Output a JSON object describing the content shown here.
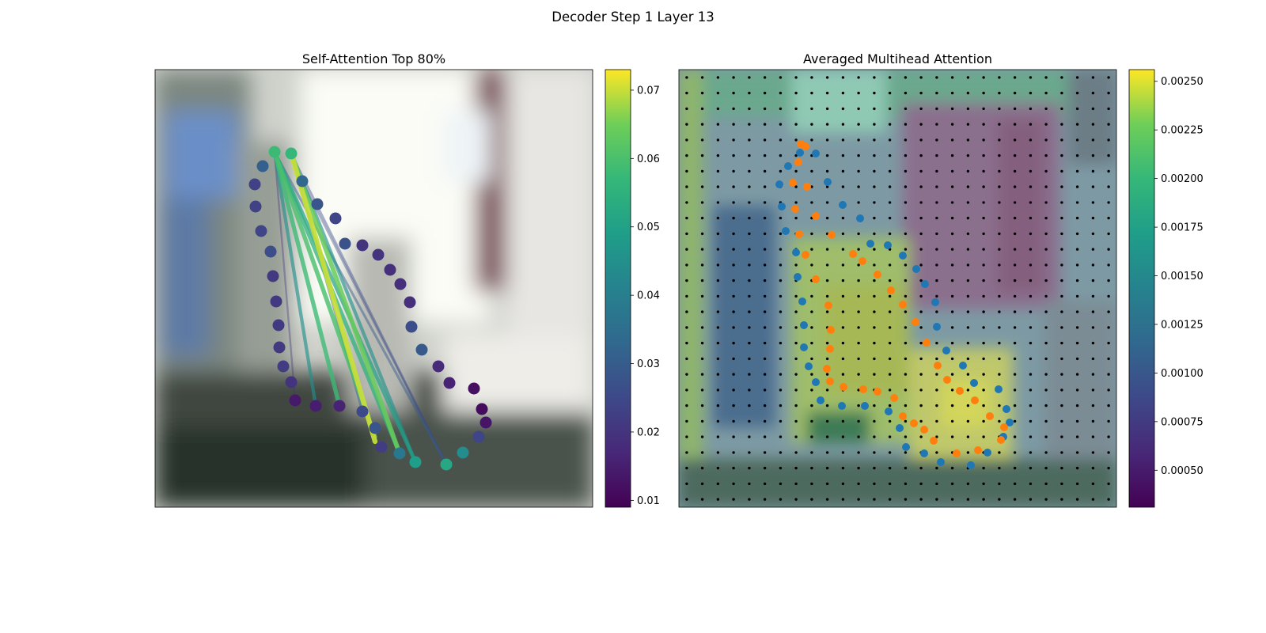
{
  "figure": {
    "title": "Decoder Step 1 Layer 13"
  },
  "chart_data": [
    {
      "type": "scatter",
      "panel": "self-attention",
      "title": "Self-Attention Top 80%",
      "background": "blurred photo",
      "colorbar": {
        "colormap": "viridis",
        "range": [
          0.009,
          0.073
        ],
        "ticks": [
          0.01,
          0.02,
          0.03,
          0.04,
          0.05,
          0.06,
          0.07
        ],
        "tick_labels": [
          "0.01",
          "0.02",
          "0.03",
          "0.04",
          "0.05",
          "0.06",
          "0.07"
        ]
      },
      "points": [
        [
          347,
          192,
          0.058
        ],
        [
          368,
          194,
          0.057
        ],
        [
          382,
          229,
          0.033
        ],
        [
          401,
          258,
          0.028
        ],
        [
          424,
          276,
          0.024
        ],
        [
          436,
          308,
          0.027
        ],
        [
          458,
          310,
          0.02
        ],
        [
          478,
          322,
          0.02
        ],
        [
          493,
          341,
          0.019
        ],
        [
          506,
          359,
          0.019
        ],
        [
          518,
          382,
          0.019
        ],
        [
          520,
          413,
          0.026
        ],
        [
          533,
          442,
          0.029
        ],
        [
          554,
          463,
          0.018
        ],
        [
          568,
          484,
          0.016
        ],
        [
          599,
          491,
          0.012
        ],
        [
          609,
          517,
          0.011
        ],
        [
          614,
          534,
          0.013
        ],
        [
          605,
          552,
          0.024
        ],
        [
          585,
          572,
          0.044
        ],
        [
          564,
          587,
          0.052
        ],
        [
          525,
          584,
          0.049
        ],
        [
          505,
          573,
          0.038
        ],
        [
          482,
          565,
          0.022
        ],
        [
          474,
          541,
          0.028
        ],
        [
          458,
          520,
          0.025
        ],
        [
          429,
          513,
          0.016
        ],
        [
          399,
          513,
          0.015
        ],
        [
          373,
          506,
          0.014
        ],
        [
          368,
          483,
          0.02
        ],
        [
          358,
          463,
          0.022
        ],
        [
          353,
          439,
          0.021
        ],
        [
          352,
          411,
          0.021
        ],
        [
          349,
          381,
          0.021
        ],
        [
          345,
          349,
          0.021
        ],
        [
          342,
          318,
          0.026
        ],
        [
          330,
          292,
          0.024
        ],
        [
          323,
          261,
          0.023
        ],
        [
          322,
          233,
          0.023
        ],
        [
          332,
          210,
          0.031
        ]
      ],
      "edges": [
        [
          368,
          194,
          474,
          558,
          0.07
        ],
        [
          368,
          194,
          505,
          573,
          0.064
        ],
        [
          347,
          192,
          474,
          552,
          0.06
        ],
        [
          347,
          192,
          429,
          513,
          0.058
        ],
        [
          347,
          192,
          399,
          513,
          0.045
        ],
        [
          347,
          192,
          505,
          573,
          0.055
        ],
        [
          347,
          192,
          525,
          584,
          0.05
        ],
        [
          368,
          194,
          525,
          584,
          0.045
        ],
        [
          347,
          192,
          564,
          587,
          0.03
        ],
        [
          368,
          194,
          564,
          587,
          0.026
        ],
        [
          347,
          192,
          373,
          506,
          0.02
        ],
        [
          368,
          194,
          458,
          520,
          0.03
        ],
        [
          382,
          229,
          564,
          587,
          0.025
        ]
      ]
    },
    {
      "type": "heatmap",
      "panel": "averaged-multihead",
      "title": "Averaged Multihead Attention",
      "grid": [
        28,
        28
      ],
      "background": "blurred photo with attention overlay",
      "colorbar": {
        "colormap": "viridis",
        "range": [
          0.00031,
          0.00256
        ],
        "ticks": [
          0.0005,
          0.00075,
          0.001,
          0.00125,
          0.0015,
          0.00175,
          0.002,
          0.00225,
          0.0025
        ],
        "tick_labels": [
          "0.00050",
          "0.00075",
          "0.00100",
          "0.00125",
          "0.00150",
          "0.00175",
          "0.00200",
          "0.00225",
          "0.00250"
        ]
      },
      "series": [
        {
          "color": "#1f77b4",
          "points": [
            [
              1011,
              193
            ],
            [
              1031,
              194
            ],
            [
              996,
              210
            ],
            [
              985,
              233
            ],
            [
              1046,
              230
            ],
            [
              988,
              261
            ],
            [
              1065,
              259
            ],
            [
              1087,
              276
            ],
            [
              993,
              292
            ],
            [
              1006,
              319
            ],
            [
              1100,
              308
            ],
            [
              1122,
              310
            ],
            [
              1141,
              323
            ],
            [
              1008,
              350
            ],
            [
              1158,
              340
            ],
            [
              1169,
              359
            ],
            [
              1014,
              381
            ],
            [
              1182,
              382
            ],
            [
              1016,
              411
            ],
            [
              1184,
              413
            ],
            [
              1016,
              439
            ],
            [
              1196,
              443
            ],
            [
              1022,
              463
            ],
            [
              1217,
              462
            ],
            [
              1031,
              483
            ],
            [
              1231,
              484
            ],
            [
              1037,
              506
            ],
            [
              1262,
              492
            ],
            [
              1064,
              513
            ],
            [
              1093,
              513
            ],
            [
              1123,
              520
            ],
            [
              1272,
              517
            ],
            [
              1137,
              541
            ],
            [
              1145,
              565
            ],
            [
              1168,
              573
            ],
            [
              1189,
              584
            ],
            [
              1227,
              588
            ],
            [
              1248,
              572
            ],
            [
              1268,
              552
            ],
            [
              1276,
              534
            ]
          ]
        },
        {
          "color": "#ff7f0e",
          "points": [
            [
              1012,
              182
            ],
            [
              1018,
              185
            ],
            [
              1009,
              205
            ],
            [
              1002,
              231
            ],
            [
              1020,
              236
            ],
            [
              1005,
              264
            ],
            [
              1031,
              273
            ],
            [
              1010,
              296
            ],
            [
              1051,
              297
            ],
            [
              1018,
              322
            ],
            [
              1078,
              321
            ],
            [
              1090,
              330
            ],
            [
              1031,
              353
            ],
            [
              1109,
              347
            ],
            [
              1126,
              367
            ],
            [
              1047,
              386
            ],
            [
              1141,
              385
            ],
            [
              1050,
              417
            ],
            [
              1157,
              407
            ],
            [
              1049,
              441
            ],
            [
              1171,
              433
            ],
            [
              1045,
              466
            ],
            [
              1185,
              462
            ],
            [
              1049,
              482
            ],
            [
              1066,
              489
            ],
            [
              1091,
              492
            ],
            [
              1109,
              495
            ],
            [
              1130,
              503
            ],
            [
              1197,
              480
            ],
            [
              1213,
              494
            ],
            [
              1232,
              506
            ],
            [
              1251,
              526
            ],
            [
              1269,
              540
            ],
            [
              1265,
              556
            ],
            [
              1236,
              569
            ],
            [
              1209,
              573
            ],
            [
              1180,
              557
            ],
            [
              1168,
              543
            ],
            [
              1155,
              535
            ],
            [
              1141,
              526
            ]
          ]
        }
      ]
    }
  ]
}
